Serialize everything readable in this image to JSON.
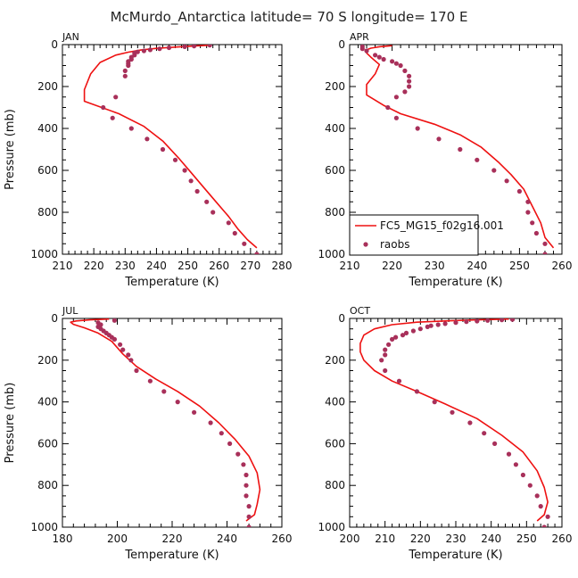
{
  "figure": {
    "title": "McMurdo_Antarctica  latitude= 70 S longitude= 170 E",
    "legend": {
      "model_label": "FC5_MG15_f02g16.001",
      "obs_label": "raobs",
      "location": "lower-left of APR panel"
    },
    "colors": {
      "model": "#ee1111",
      "obs": "#a8305a",
      "axes": "#000000"
    }
  },
  "chart_data": [
    {
      "type": "line",
      "panel": "JAN",
      "xlabel": "Temperature (K)",
      "ylabel": "Pressure (mb)",
      "xlim": [
        210,
        280
      ],
      "xticks": [
        210,
        220,
        230,
        240,
        250,
        260,
        270,
        280
      ],
      "ylim": [
        1000,
        0
      ],
      "yticks": [
        0,
        200,
        400,
        600,
        800,
        1000
      ],
      "series": [
        {
          "name": "FC5_MG15_f02g16.001",
          "kind": "line",
          "points": [
            [
              257,
              3
            ],
            [
              252,
              7
            ],
            [
              246,
              12
            ],
            [
              240,
              18
            ],
            [
              235,
              26
            ],
            [
              231,
              36
            ],
            [
              227,
              50
            ],
            [
              222,
              85
            ],
            [
              219,
              140
            ],
            [
              217,
              215
            ],
            [
              217,
              270
            ],
            [
              228,
              330
            ],
            [
              236,
              390
            ],
            [
              242,
              460
            ],
            [
              247,
              540
            ],
            [
              251,
              610
            ],
            [
              255,
              680
            ],
            [
              259,
              750
            ],
            [
              263,
              820
            ],
            [
              266,
              880
            ],
            [
              269,
              930
            ],
            [
              272,
              970
            ]
          ]
        },
        {
          "name": "raobs",
          "kind": "scatter",
          "points": [
            [
              257,
              3
            ],
            [
              252,
              7
            ],
            [
              249,
              10
            ],
            [
              244,
              15
            ],
            [
              241,
              20
            ],
            [
              238,
              25
            ],
            [
              236,
              30
            ],
            [
              234,
              35
            ],
            [
              233,
              40
            ],
            [
              233,
              50
            ],
            [
              232,
              60
            ],
            [
              232,
              70
            ],
            [
              231,
              80
            ],
            [
              231,
              90
            ],
            [
              231,
              100
            ],
            [
              230,
              125
            ],
            [
              230,
              150
            ],
            [
              227,
              250
            ],
            [
              223,
              300
            ],
            [
              226,
              350
            ],
            [
              232,
              400
            ],
            [
              237,
              450
            ],
            [
              242,
              500
            ],
            [
              246,
              550
            ],
            [
              249,
              600
            ],
            [
              251,
              650
            ],
            [
              253,
              700
            ],
            [
              256,
              750
            ],
            [
              258,
              800
            ],
            [
              263,
              850
            ],
            [
              265,
              900
            ],
            [
              268,
              950
            ],
            [
              272,
              1000
            ]
          ]
        }
      ]
    },
    {
      "type": "line",
      "panel": "APR",
      "xlabel": "Temperature (K)",
      "ylabel": "",
      "xlim": [
        210,
        260
      ],
      "xticks": [
        210,
        220,
        230,
        240,
        250,
        260
      ],
      "ylim": [
        1000,
        0
      ],
      "yticks": [
        0,
        200,
        400,
        600,
        800,
        1000
      ],
      "series": [
        {
          "name": "FC5_MG15_f02g16.001",
          "kind": "line",
          "points": [
            [
              220,
              5
            ],
            [
              217,
              10
            ],
            [
              215,
              17
            ],
            [
              214,
              25
            ],
            [
              214,
              40
            ],
            [
              215,
              60
            ],
            [
              217,
              95
            ],
            [
              216,
              140
            ],
            [
              214,
              190
            ],
            [
              214,
              240
            ],
            [
              218,
              290
            ],
            [
              222,
              330
            ],
            [
              230,
              380
            ],
            [
              236,
              430
            ],
            [
              241,
              490
            ],
            [
              245,
              560
            ],
            [
              248,
              620
            ],
            [
              251,
              690
            ],
            [
              253,
              770
            ],
            [
              255,
              850
            ],
            [
              256,
              920
            ],
            [
              258,
              970
            ]
          ]
        },
        {
          "name": "raobs",
          "kind": "scatter",
          "points": [
            [
              213,
              10
            ],
            [
              213,
              20
            ],
            [
              214,
              30
            ],
            [
              216,
              50
            ],
            [
              217,
              60
            ],
            [
              218,
              70
            ],
            [
              220,
              80
            ],
            [
              221,
              90
            ],
            [
              222,
              100
            ],
            [
              223,
              125
            ],
            [
              224,
              150
            ],
            [
              224,
              175
            ],
            [
              224,
              200
            ],
            [
              223,
              225
            ],
            [
              221,
              250
            ],
            [
              219,
              300
            ],
            [
              221,
              350
            ],
            [
              226,
              400
            ],
            [
              231,
              450
            ],
            [
              236,
              500
            ],
            [
              240,
              550
            ],
            [
              244,
              600
            ],
            [
              247,
              650
            ],
            [
              250,
              700
            ],
            [
              252,
              750
            ],
            [
              252,
              800
            ],
            [
              253,
              850
            ],
            [
              254,
              900
            ],
            [
              256,
              950
            ],
            [
              256,
              1000
            ]
          ]
        }
      ]
    },
    {
      "type": "line",
      "panel": "JUL",
      "xlabel": "Temperature (K)",
      "ylabel": "Pressure (mb)",
      "xlim": [
        180,
        260
      ],
      "xticks": [
        180,
        200,
        220,
        240,
        260
      ],
      "ylim": [
        1000,
        0
      ],
      "yticks": [
        0,
        200,
        400,
        600,
        800,
        1000
      ],
      "series": [
        {
          "name": "FC5_MG15_f02g16.001",
          "kind": "line",
          "points": [
            [
              197,
              3
            ],
            [
              190,
              7
            ],
            [
              185,
              12
            ],
            [
              183,
              18
            ],
            [
              184,
              28
            ],
            [
              188,
              45
            ],
            [
              193,
              70
            ],
            [
              198,
              110
            ],
            [
              202,
              170
            ],
            [
              207,
              230
            ],
            [
              214,
              290
            ],
            [
              222,
              350
            ],
            [
              230,
              420
            ],
            [
              237,
              500
            ],
            [
              243,
              580
            ],
            [
              248,
              660
            ],
            [
              251,
              740
            ],
            [
              252,
              820
            ],
            [
              251,
              890
            ],
            [
              250,
              940
            ],
            [
              247,
              970
            ]
          ]
        },
        {
          "name": "raobs",
          "kind": "scatter",
          "points": [
            [
              199,
              10
            ],
            [
              193,
              20
            ],
            [
              194,
              30
            ],
            [
              193,
              40
            ],
            [
              194,
              50
            ],
            [
              195,
              60
            ],
            [
              196,
              70
            ],
            [
              197,
              80
            ],
            [
              198,
              90
            ],
            [
              199,
              100
            ],
            [
              201,
              125
            ],
            [
              202,
              150
            ],
            [
              204,
              175
            ],
            [
              205,
              200
            ],
            [
              207,
              250
            ],
            [
              212,
              300
            ],
            [
              217,
              350
            ],
            [
              222,
              400
            ],
            [
              228,
              450
            ],
            [
              234,
              500
            ],
            [
              238,
              550
            ],
            [
              241,
              600
            ],
            [
              244,
              650
            ],
            [
              246,
              700
            ],
            [
              247,
              750
            ],
            [
              247,
              800
            ],
            [
              247,
              850
            ],
            [
              248,
              900
            ],
            [
              248,
              950
            ],
            [
              248,
              1000
            ]
          ]
        }
      ]
    },
    {
      "type": "line",
      "panel": "OCT",
      "xlabel": "Temperature (K)",
      "ylabel": "",
      "xlim": [
        200,
        260
      ],
      "xticks": [
        200,
        210,
        220,
        230,
        240,
        250,
        260
      ],
      "ylim": [
        1000,
        0
      ],
      "yticks": [
        0,
        200,
        400,
        600,
        800,
        1000
      ],
      "series": [
        {
          "name": "FC5_MG15_f02g16.001",
          "kind": "line",
          "points": [
            [
              245,
              3
            ],
            [
              236,
              7
            ],
            [
              227,
              12
            ],
            [
              219,
              18
            ],
            [
              212,
              30
            ],
            [
              207,
              50
            ],
            [
              204,
              80
            ],
            [
              203,
              120
            ],
            [
              203,
              160
            ],
            [
              204,
              200
            ],
            [
              207,
              250
            ],
            [
              212,
              300
            ],
            [
              219,
              350
            ],
            [
              227,
              410
            ],
            [
              236,
              480
            ],
            [
              243,
              560
            ],
            [
              249,
              640
            ],
            [
              253,
              730
            ],
            [
              255,
              810
            ],
            [
              256,
              880
            ],
            [
              255,
              940
            ],
            [
              253,
              970
            ]
          ]
        },
        {
          "name": "raobs",
          "kind": "scatter",
          "points": [
            [
              246,
              5
            ],
            [
              243,
              7
            ],
            [
              239,
              10
            ],
            [
              236,
              13
            ],
            [
              233,
              16
            ],
            [
              230,
              20
            ],
            [
              227,
              25
            ],
            [
              225,
              30
            ],
            [
              223,
              35
            ],
            [
              222,
              40
            ],
            [
              220,
              50
            ],
            [
              218,
              60
            ],
            [
              216,
              70
            ],
            [
              215,
              80
            ],
            [
              213,
              90
            ],
            [
              212,
              100
            ],
            [
              211,
              125
            ],
            [
              210,
              150
            ],
            [
              210,
              175
            ],
            [
              209,
              200
            ],
            [
              210,
              250
            ],
            [
              214,
              300
            ],
            [
              219,
              350
            ],
            [
              224,
              400
            ],
            [
              229,
              450
            ],
            [
              234,
              500
            ],
            [
              238,
              550
            ],
            [
              241,
              600
            ],
            [
              245,
              650
            ],
            [
              247,
              700
            ],
            [
              249,
              750
            ],
            [
              251,
              800
            ],
            [
              253,
              850
            ],
            [
              254,
              900
            ],
            [
              256,
              950
            ],
            [
              255,
              1000
            ]
          ]
        }
      ]
    }
  ]
}
